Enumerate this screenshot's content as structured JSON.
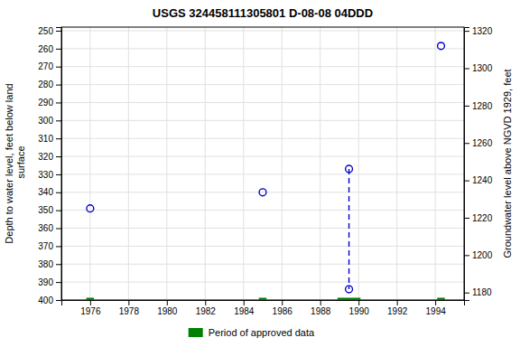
{
  "chart_data": {
    "type": "scatter",
    "title": "USGS 324458111305801 D-08-08 04DDD",
    "ylabel": "Depth to water level, feet below land\n surface",
    "y2label": "Groundwater level above NGVD 1929, feet",
    "xlim": [
      1974.5,
      1995.5
    ],
    "xticks": [
      1976,
      1978,
      1980,
      1982,
      1984,
      1986,
      1988,
      1990,
      1992,
      1994
    ],
    "ylim": [
      400,
      248
    ],
    "yticks": [
      250,
      260,
      270,
      280,
      290,
      300,
      310,
      320,
      330,
      340,
      350,
      360,
      370,
      380,
      390,
      400
    ],
    "y2lim": [
      1176,
      1322
    ],
    "y2ticks": [
      1180,
      1200,
      1220,
      1240,
      1260,
      1280,
      1300,
      1320
    ],
    "grid": true,
    "legend": "bottom",
    "series": [
      {
        "type": "line",
        "line_style": "dashed",
        "color": "#0000CC",
        "x": [
          1989.5,
          1989.5
        ],
        "values": [
          327.0,
          394.0
        ]
      },
      {
        "type": "scatter",
        "marker": "circle",
        "color": "#0000CC",
        "x": [
          1976.0,
          1985.0,
          1989.5,
          1989.5,
          1994.3
        ],
        "values": [
          349.0,
          340.0,
          327.0,
          394.0,
          258.5
        ]
      },
      {
        "name": "Period of approved data",
        "type": "line",
        "line_style": "solid",
        "color": "#008000",
        "x": [
          1975.8,
          1976.2,
          null,
          1984.8,
          1985.2,
          null,
          1988.9,
          1990.1,
          null,
          1994.1,
          1994.5
        ],
        "values": [
          400,
          400,
          null,
          400,
          400,
          null,
          400,
          400,
          null,
          400,
          400
        ]
      }
    ]
  }
}
